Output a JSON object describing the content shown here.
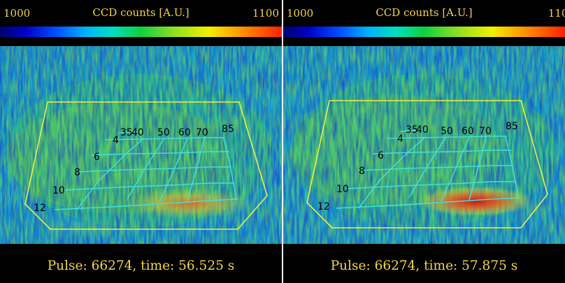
{
  "colorbar": {
    "min": "1000",
    "max": "1100",
    "label": "CCD counts [A.U.]",
    "colors": [
      "#000070",
      "#0000c8",
      "#0050ff",
      "#00b0ff",
      "#00e0c0",
      "#10d040",
      "#90e020",
      "#f0f000",
      "#ff9000",
      "#ff2000"
    ]
  },
  "grid_labels": {
    "top": [
      "35",
      "40",
      "50",
      "60",
      "70",
      "85"
    ],
    "side": [
      "4",
      "6",
      "8",
      "10",
      "12"
    ]
  },
  "panels": [
    {
      "caption": "Pulse: 66274, time: 56.525 s"
    },
    {
      "caption": "Pulse: 66274, time: 57.875 s"
    }
  ],
  "colors": {
    "text_yellow": "#f2d640",
    "outline_yellow": "#f0f040",
    "grid_cyan": "#40e0e0"
  }
}
